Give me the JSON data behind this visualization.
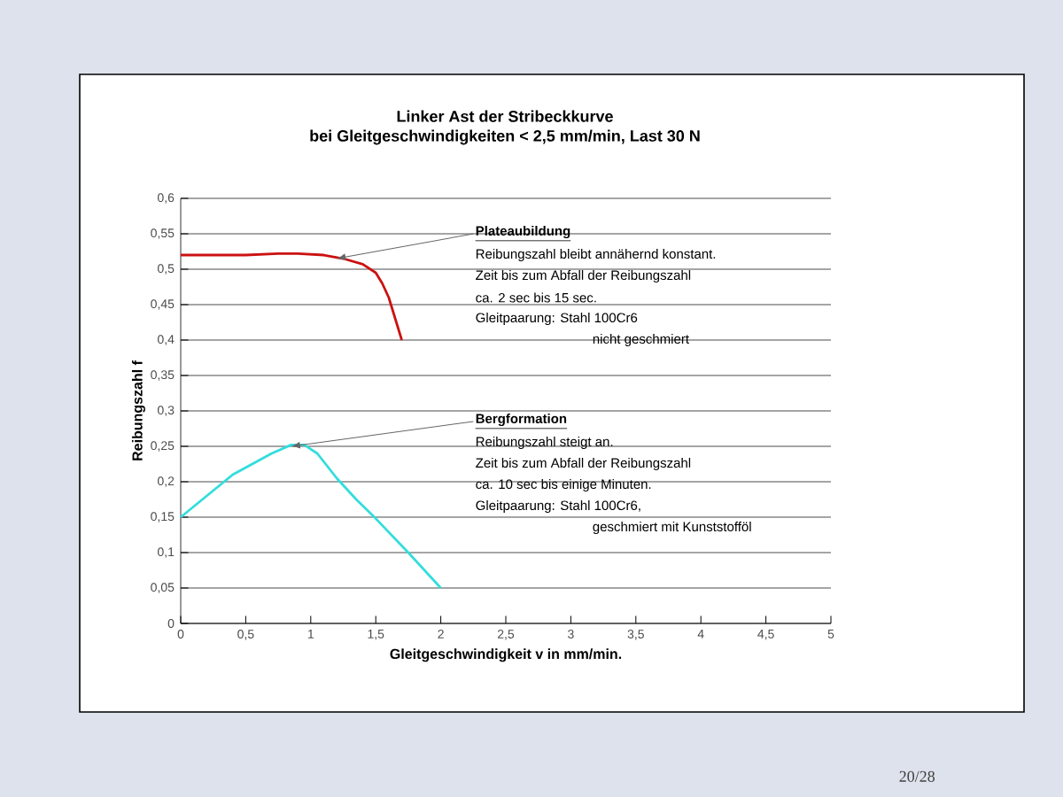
{
  "chart_data": {
    "type": "line",
    "title": "Linker Ast der Stribeckkurve",
    "subtitle": "bei Gleitgeschwindigkeiten < 2,5 mm/min, Last 30 N",
    "xlabel": "Gleitgeschwindigkeit v in mm/min.",
    "ylabel": "Reibungszahl f",
    "xlim": [
      0,
      5
    ],
    "xticks": [
      {
        "value": 0,
        "label": "0"
      },
      {
        "value": 0.5,
        "label": "0,5"
      },
      {
        "value": 1,
        "label": "1"
      },
      {
        "value": 1.5,
        "label": "1,5"
      },
      {
        "value": 2,
        "label": "2"
      },
      {
        "value": 2.5,
        "label": "2,5"
      },
      {
        "value": 3,
        "label": "3"
      },
      {
        "value": 3.5,
        "label": "3,5"
      },
      {
        "value": 4,
        "label": "4"
      },
      {
        "value": 4.5,
        "label": "4,5"
      },
      {
        "value": 5,
        "label": "5"
      }
    ],
    "ylim": [
      0,
      0.6
    ],
    "yticks": [
      {
        "value": 0,
        "label": "0"
      },
      {
        "value": 0.05,
        "label": "0,05"
      },
      {
        "value": 0.1,
        "label": "0,1"
      },
      {
        "value": 0.15,
        "label": "0,15"
      },
      {
        "value": 0.2,
        "label": "0,2"
      },
      {
        "value": 0.25,
        "label": "0,25"
      },
      {
        "value": 0.3,
        "label": "0,3"
      },
      {
        "value": 0.35,
        "label": "0,35"
      },
      {
        "value": 0.4,
        "label": "0,4"
      },
      {
        "value": 0.45,
        "label": "0,45"
      },
      {
        "value": 0.5,
        "label": "0,5"
      },
      {
        "value": 0.55,
        "label": "0,55"
      },
      {
        "value": 0.6,
        "label": "0,6"
      }
    ],
    "grid": "y",
    "marker": "none",
    "line_style": "solid",
    "series": [
      {
        "color": "#cc1111",
        "x": [
          0,
          0.5,
          0.75,
          0.9,
          1.1,
          1.25,
          1.4,
          1.5,
          1.55,
          1.6,
          1.65,
          1.7
        ],
        "values": [
          0.52,
          0.52,
          0.522,
          0.522,
          0.52,
          0.515,
          0.507,
          0.495,
          0.48,
          0.46,
          0.43,
          0.4
        ]
      },
      {
        "color": "#33dddd",
        "x": [
          0,
          0.2,
          0.4,
          0.55,
          0.7,
          0.85,
          0.95,
          1.05,
          1.2,
          1.35,
          1.5,
          1.75,
          2.0
        ],
        "values": [
          0.15,
          0.18,
          0.21,
          0.225,
          0.24,
          0.252,
          0.252,
          0.24,
          0.205,
          0.175,
          0.148,
          0.1,
          0.05
        ]
      }
    ],
    "annotations": [
      {
        "text": "Plateaubildung",
        "x": 1.2,
        "y": 0.515
      },
      "Reibungszahl bleibt annähernd konstant.",
      "Zeit bis zum Abfall der Reibungszahl",
      "ca. 2 sec bis 15 sec.",
      "Gleitpaarung: Stahl 100Cr6",
      "nicht geschmiert",
      {
        "text": "Bergformation",
        "x": 0.85,
        "y": 0.25
      },
      "Reibungszahl steigt an.",
      "Zeit bis zum Abfall der Reibungszahl",
      "ca. 10 sec bis einige Minuten.",
      "Gleitpaarung: Stahl 100Cr6,",
      "geschmiert mit Kunststofföl",
      "20/28"
    ]
  }
}
